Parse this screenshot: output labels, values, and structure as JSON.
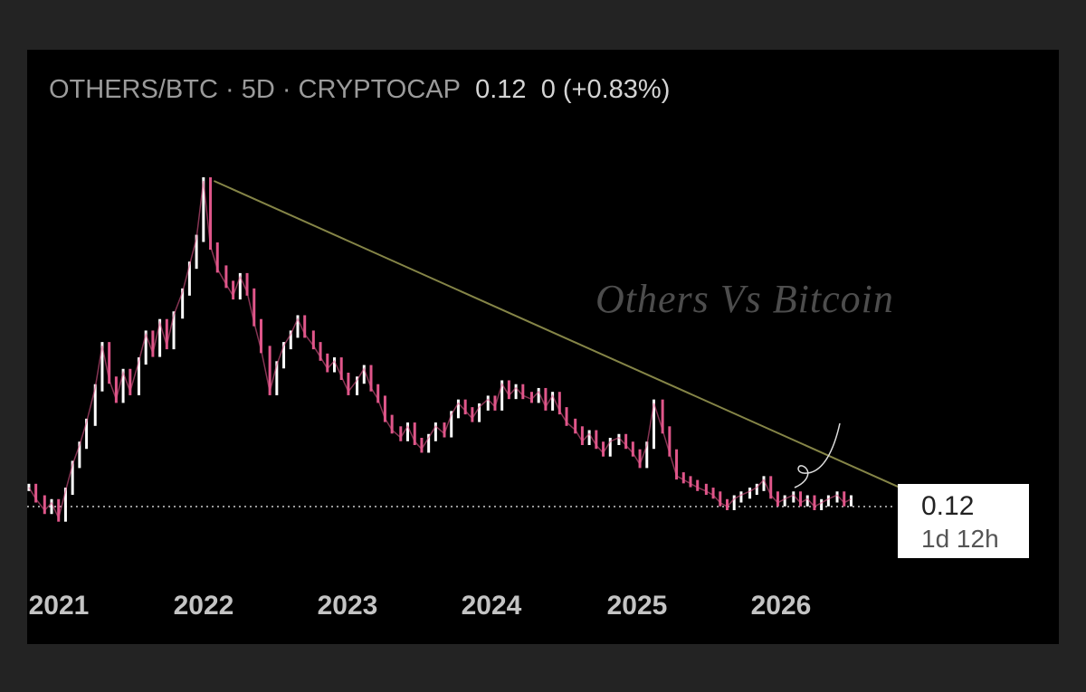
{
  "header": {
    "symbol": "OTHERS/BTC",
    "interval": "5D",
    "exchange": "CRYPTOCAP",
    "last": "0.12",
    "change": "0",
    "change_pct": "(+0.83%)"
  },
  "annotation": "Others Vs Bitcoin",
  "price_label": {
    "value": "0.12",
    "countdown": "1d 12h"
  },
  "colors": {
    "background": "#000000",
    "frame": "#232323",
    "up_candle": "#ffffff",
    "down_candle": "#e0568a",
    "trendline": "#858547",
    "price_line": "#cccccc",
    "tick_text": "#c4c4c4"
  },
  "chart_data": {
    "type": "line",
    "title": "OTHERS/BTC · 5D · CRYPTOCAP",
    "x_ticks": [
      "2021",
      "2022",
      "2023",
      "2024",
      "2025",
      "2026"
    ],
    "x_range": [
      2020.99,
      2026.9
    ],
    "y_range": [
      0.1125,
      0.2078
    ],
    "series": [
      {
        "name": "OTHERS/BTC",
        "points": [
          [
            2021.0,
            0.125
          ],
          [
            2021.04,
            0.122
          ],
          [
            2021.09,
            0.119
          ],
          [
            2021.13,
            0.121
          ],
          [
            2021.17,
            0.117
          ],
          [
            2021.21,
            0.124
          ],
          [
            2021.25,
            0.131
          ],
          [
            2021.29,
            0.136
          ],
          [
            2021.33,
            0.142
          ],
          [
            2021.38,
            0.151
          ],
          [
            2021.42,
            0.162
          ],
          [
            2021.46,
            0.153
          ],
          [
            2021.5,
            0.148
          ],
          [
            2021.54,
            0.155
          ],
          [
            2021.58,
            0.15
          ],
          [
            2021.63,
            0.158
          ],
          [
            2021.67,
            0.165
          ],
          [
            2021.71,
            0.16
          ],
          [
            2021.75,
            0.168
          ],
          [
            2021.79,
            0.162
          ],
          [
            2021.83,
            0.17
          ],
          [
            2021.88,
            0.176
          ],
          [
            2021.92,
            0.183
          ],
          [
            2021.96,
            0.19
          ],
          [
            2022.0,
            0.205
          ],
          [
            2022.04,
            0.188
          ],
          [
            2022.08,
            0.182
          ],
          [
            2022.13,
            0.178
          ],
          [
            2022.17,
            0.175
          ],
          [
            2022.21,
            0.18
          ],
          [
            2022.25,
            0.176
          ],
          [
            2022.29,
            0.168
          ],
          [
            2022.33,
            0.161
          ],
          [
            2022.38,
            0.15
          ],
          [
            2022.42,
            0.157
          ],
          [
            2022.46,
            0.162
          ],
          [
            2022.5,
            0.165
          ],
          [
            2022.54,
            0.169
          ],
          [
            2022.58,
            0.165
          ],
          [
            2022.63,
            0.162
          ],
          [
            2022.67,
            0.159
          ],
          [
            2022.71,
            0.156
          ],
          [
            2022.75,
            0.158
          ],
          [
            2022.79,
            0.154
          ],
          [
            2022.83,
            0.15
          ],
          [
            2022.88,
            0.153
          ],
          [
            2022.92,
            0.156
          ],
          [
            2022.96,
            0.151
          ],
          [
            2023.0,
            0.148
          ],
          [
            2023.04,
            0.143
          ],
          [
            2023.08,
            0.14
          ],
          [
            2023.13,
            0.138
          ],
          [
            2023.17,
            0.141
          ],
          [
            2023.21,
            0.137
          ],
          [
            2023.25,
            0.135
          ],
          [
            2023.29,
            0.138
          ],
          [
            2023.33,
            0.141
          ],
          [
            2023.38,
            0.139
          ],
          [
            2023.42,
            0.144
          ],
          [
            2023.46,
            0.147
          ],
          [
            2023.5,
            0.145
          ],
          [
            2023.54,
            0.143
          ],
          [
            2023.58,
            0.146
          ],
          [
            2023.63,
            0.148
          ],
          [
            2023.67,
            0.146
          ],
          [
            2023.71,
            0.152
          ],
          [
            2023.75,
            0.149
          ],
          [
            2023.79,
            0.151
          ],
          [
            2023.83,
            0.149
          ],
          [
            2023.88,
            0.148
          ],
          [
            2023.92,
            0.15
          ],
          [
            2023.96,
            0.146
          ],
          [
            2024.0,
            0.149
          ],
          [
            2024.04,
            0.145
          ],
          [
            2024.08,
            0.142
          ],
          [
            2024.13,
            0.14
          ],
          [
            2024.17,
            0.137
          ],
          [
            2024.21,
            0.139
          ],
          [
            2024.25,
            0.136
          ],
          [
            2024.29,
            0.134
          ],
          [
            2024.33,
            0.137
          ],
          [
            2024.38,
            0.138
          ],
          [
            2024.42,
            0.136
          ],
          [
            2024.46,
            0.134
          ],
          [
            2024.5,
            0.131
          ],
          [
            2024.54,
            0.136
          ],
          [
            2024.58,
            0.147
          ],
          [
            2024.63,
            0.14
          ],
          [
            2024.67,
            0.134
          ],
          [
            2024.71,
            0.128
          ],
          [
            2024.75,
            0.127
          ],
          [
            2024.79,
            0.126
          ],
          [
            2024.83,
            0.125
          ],
          [
            2024.88,
            0.124
          ],
          [
            2024.92,
            0.123
          ],
          [
            2024.96,
            0.121
          ],
          [
            2025.0,
            0.12
          ],
          [
            2025.04,
            0.122
          ],
          [
            2025.08,
            0.123
          ],
          [
            2025.13,
            0.124
          ],
          [
            2025.17,
            0.125
          ],
          [
            2025.21,
            0.127
          ],
          [
            2025.25,
            0.123
          ],
          [
            2025.29,
            0.121
          ],
          [
            2025.33,
            0.122
          ],
          [
            2025.38,
            0.123
          ],
          [
            2025.42,
            0.121
          ],
          [
            2025.46,
            0.122
          ],
          [
            2025.5,
            0.12
          ],
          [
            2025.54,
            0.121
          ],
          [
            2025.58,
            0.122
          ],
          [
            2025.63,
            0.123
          ],
          [
            2025.67,
            0.121
          ],
          [
            2025.71,
            0.122
          ]
        ]
      },
      {
        "name": "",
        "points": [
          [
            2022.06,
            0.205
          ],
          [
            2026.38,
            0.117
          ]
        ]
      }
    ],
    "current_price_line": 0.12,
    "legend": "none",
    "grid": false
  }
}
